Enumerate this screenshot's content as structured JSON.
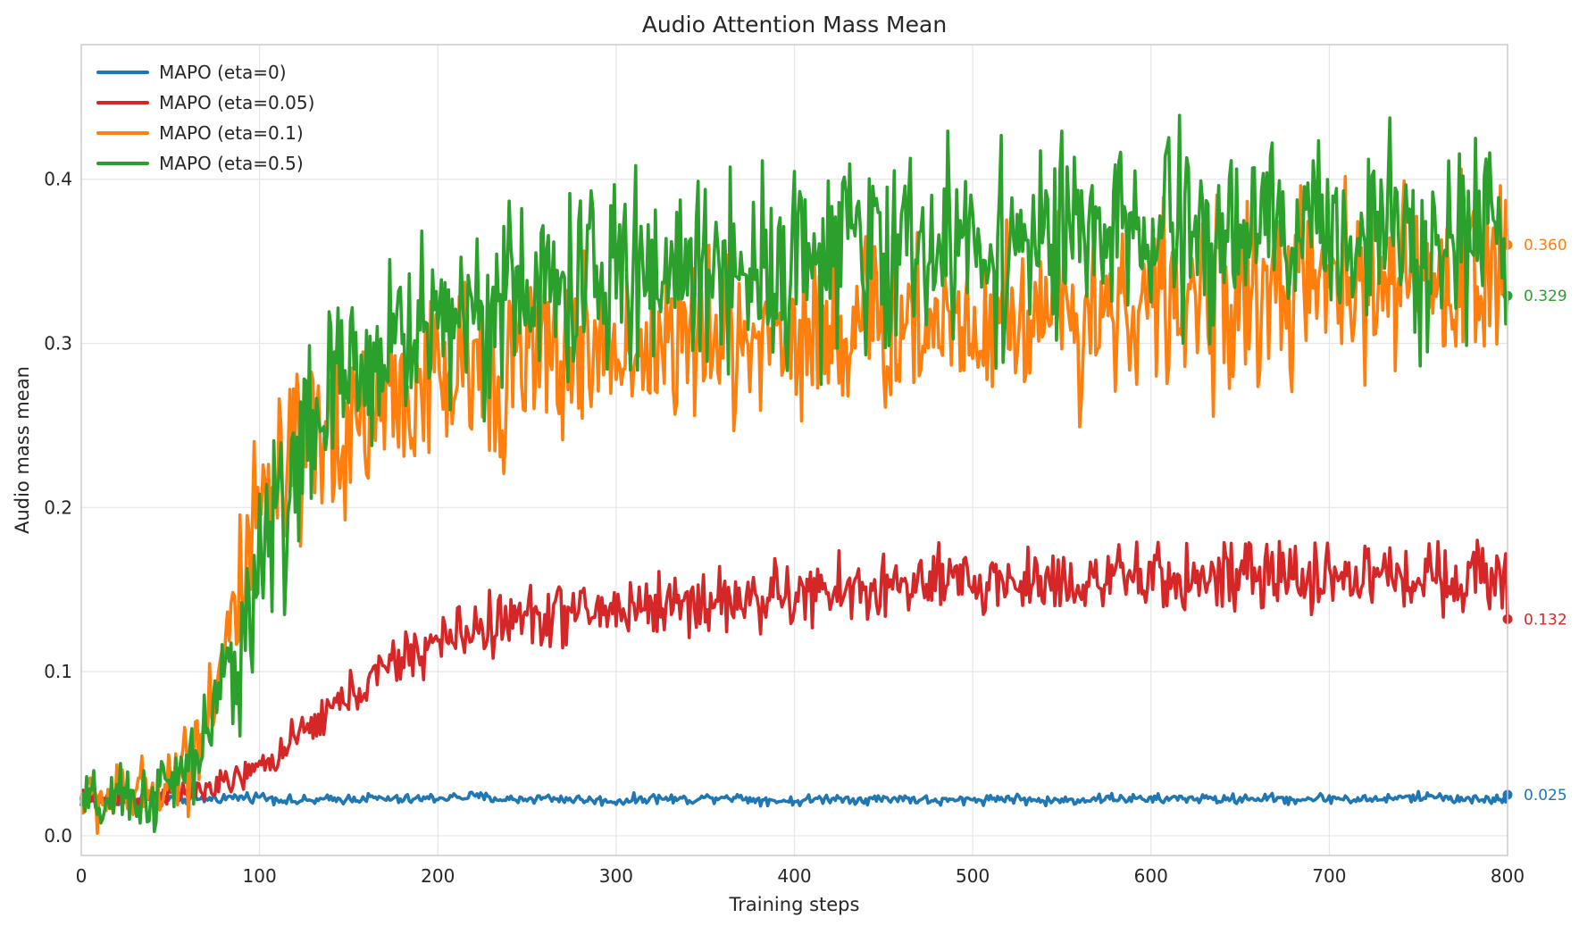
{
  "chart_data": {
    "type": "line",
    "title": "Audio Attention Mass Mean",
    "xlabel": "Training steps",
    "ylabel": "Audio mass mean",
    "xlim": [
      0,
      800
    ],
    "ylim": [
      -0.012,
      0.482
    ],
    "x_ticks": [
      0,
      100,
      200,
      300,
      400,
      500,
      600,
      700,
      800
    ],
    "y_ticks": [
      0.0,
      0.1,
      0.2,
      0.3,
      0.4
    ],
    "x_tick_labels": [
      "0",
      "100",
      "200",
      "300",
      "400",
      "500",
      "600",
      "700",
      "800"
    ],
    "y_tick_labels": [
      "0.0",
      "0.1",
      "0.2",
      "0.3",
      "0.4"
    ],
    "grid": true,
    "legend_position": "top-left",
    "series": [
      {
        "name": "MAPO (eta=0)",
        "color": "#1f77b4",
        "final_value": 0.025,
        "final_label": "0.025",
        "x": [
          0,
          20,
          40,
          60,
          80,
          100,
          120,
          140,
          160,
          180,
          200,
          220,
          240,
          260,
          280,
          300,
          320,
          340,
          360,
          380,
          400,
          420,
          440,
          460,
          480,
          500,
          520,
          540,
          560,
          580,
          600,
          620,
          640,
          660,
          680,
          700,
          720,
          740,
          760,
          780,
          800
        ],
        "values": [
          0.022,
          0.021,
          0.024,
          0.022,
          0.023,
          0.024,
          0.021,
          0.022,
          0.023,
          0.022,
          0.023,
          0.024,
          0.022,
          0.023,
          0.022,
          0.021,
          0.023,
          0.022,
          0.024,
          0.022,
          0.021,
          0.023,
          0.022,
          0.023,
          0.021,
          0.022,
          0.023,
          0.021,
          0.022,
          0.023,
          0.022,
          0.023,
          0.022,
          0.023,
          0.022,
          0.023,
          0.022,
          0.023,
          0.024,
          0.022,
          0.025
        ]
      },
      {
        "name": "MAPO (eta=0.05)",
        "color": "#d62728",
        "final_value": 0.132,
        "final_label": "0.132",
        "x": [
          0,
          20,
          40,
          60,
          80,
          100,
          120,
          140,
          160,
          180,
          200,
          220,
          240,
          260,
          280,
          300,
          320,
          340,
          360,
          380,
          400,
          420,
          440,
          460,
          480,
          500,
          520,
          540,
          560,
          580,
          600,
          620,
          640,
          660,
          680,
          700,
          720,
          740,
          760,
          780,
          800
        ],
        "values": [
          0.022,
          0.023,
          0.024,
          0.026,
          0.031,
          0.041,
          0.058,
          0.077,
          0.093,
          0.108,
          0.118,
          0.126,
          0.131,
          0.135,
          0.136,
          0.138,
          0.141,
          0.142,
          0.143,
          0.145,
          0.146,
          0.148,
          0.15,
          0.152,
          0.153,
          0.154,
          0.155,
          0.155,
          0.156,
          0.156,
          0.156,
          0.157,
          0.157,
          0.157,
          0.158,
          0.158,
          0.158,
          0.158,
          0.159,
          0.158,
          0.132
        ]
      },
      {
        "name": "MAPO (eta=0.1)",
        "color": "#ff7f0e",
        "final_value": 0.36,
        "final_label": "0.360",
        "x": [
          0,
          20,
          40,
          60,
          80,
          100,
          120,
          140,
          160,
          180,
          200,
          220,
          240,
          260,
          280,
          300,
          320,
          340,
          360,
          380,
          400,
          420,
          440,
          460,
          480,
          500,
          520,
          540,
          560,
          580,
          600,
          620,
          640,
          660,
          680,
          700,
          720,
          740,
          760,
          780,
          800
        ],
        "values": [
          0.022,
          0.023,
          0.027,
          0.045,
          0.11,
          0.19,
          0.225,
          0.244,
          0.258,
          0.268,
          0.276,
          0.283,
          0.288,
          0.292,
          0.295,
          0.298,
          0.3,
          0.302,
          0.304,
          0.305,
          0.307,
          0.309,
          0.311,
          0.313,
          0.315,
          0.316,
          0.318,
          0.32,
          0.322,
          0.323,
          0.325,
          0.327,
          0.328,
          0.33,
          0.331,
          0.333,
          0.335,
          0.337,
          0.339,
          0.342,
          0.36
        ]
      },
      {
        "name": "MAPO (eta=0.5)",
        "color": "#2ca02c",
        "final_value": 0.329,
        "final_label": "0.329",
        "x": [
          0,
          20,
          40,
          60,
          80,
          100,
          120,
          140,
          160,
          180,
          200,
          220,
          240,
          260,
          280,
          300,
          320,
          340,
          360,
          380,
          400,
          420,
          440,
          460,
          480,
          500,
          520,
          540,
          560,
          580,
          600,
          620,
          640,
          660,
          680,
          700,
          720,
          740,
          760,
          780,
          800
        ],
        "values": [
          0.018,
          0.02,
          0.024,
          0.038,
          0.085,
          0.165,
          0.225,
          0.265,
          0.29,
          0.305,
          0.315,
          0.322,
          0.328,
          0.332,
          0.336,
          0.34,
          0.343,
          0.346,
          0.348,
          0.35,
          0.352,
          0.354,
          0.356,
          0.358,
          0.359,
          0.36,
          0.361,
          0.362,
          0.363,
          0.364,
          0.365,
          0.366,
          0.366,
          0.367,
          0.367,
          0.368,
          0.368,
          0.369,
          0.369,
          0.37,
          0.329
        ]
      }
    ]
  }
}
